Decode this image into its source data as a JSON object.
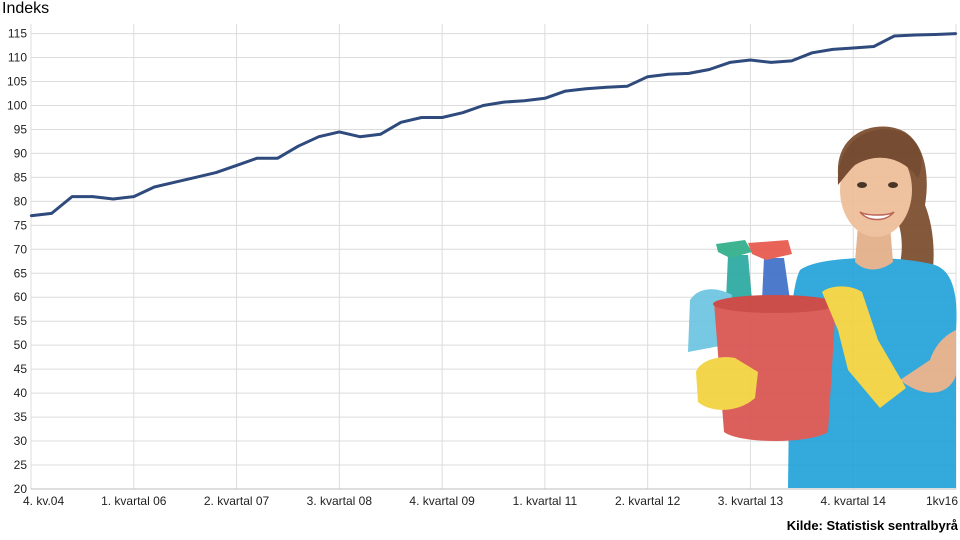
{
  "chart_data": {
    "type": "line",
    "ylabel": "Indeks",
    "source": "Kilde: Statistisk sentralbyrå",
    "ylim": [
      20,
      117
    ],
    "yticks": [
      20,
      25,
      30,
      35,
      40,
      45,
      50,
      55,
      60,
      65,
      70,
      75,
      80,
      85,
      90,
      95,
      100,
      105,
      110,
      115
    ],
    "xtick_labels": [
      "4. kv.04",
      "1. kvartal 06",
      "2. kvartal 07",
      "3. kvartal 08",
      "4. kvartal 09",
      "1. kvartal 11",
      "2. kvartal 12",
      "3. kvartal 13",
      "4. kvartal 14",
      "1kv16"
    ],
    "xtick_index": [
      0,
      5,
      10,
      15,
      20,
      25,
      30,
      35,
      40,
      45
    ],
    "grid": true,
    "line_color": "#2f4a7c",
    "series": [
      {
        "values": [
          77.0,
          77.5,
          81.0,
          81.0,
          80.5,
          81.0,
          83.0,
          84.0,
          85.0,
          86.0,
          87.5,
          89.0,
          89.0,
          91.5,
          93.5,
          94.5,
          93.5,
          94.0,
          96.5,
          97.5,
          97.5,
          98.5,
          100.0,
          100.7,
          101.0,
          101.5,
          103.0,
          103.5,
          103.8,
          104.0,
          106.0,
          106.5,
          106.7,
          107.5,
          109.0,
          109.5,
          109.0,
          109.3,
          111.0,
          111.7,
          112.0,
          112.3,
          114.5,
          114.7,
          114.8,
          115.0
        ]
      }
    ]
  },
  "illustration": {
    "subject": "woman-holding-cleaning-bucket",
    "colors": {
      "shirt": "#1fa0d8",
      "gloves": "#f5d43a",
      "bucket": "#d9534f",
      "skin": "#e8b58e",
      "hair": "#6b3e22"
    }
  }
}
